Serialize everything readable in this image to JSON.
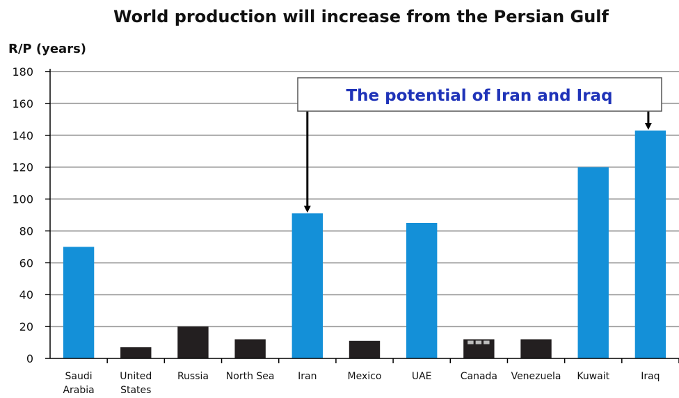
{
  "chart_data": {
    "type": "bar",
    "title": "World production will increase from the Persian Gulf",
    "ylabel": "R/P  (years)",
    "xlabel": "",
    "ylim": [
      0,
      180
    ],
    "yticks": [
      0,
      20,
      40,
      60,
      80,
      100,
      120,
      140,
      160,
      180
    ],
    "grid": true,
    "categories": [
      [
        "Saudi",
        "Arabia"
      ],
      [
        "United",
        "States"
      ],
      [
        "Russia"
      ],
      [
        "North Sea"
      ],
      [
        "Iran"
      ],
      [
        "Mexico"
      ],
      [
        "UAE"
      ],
      [
        "Canada"
      ],
      [
        "Venezuela"
      ],
      [
        "Kuwait"
      ],
      [
        "Iraq"
      ]
    ],
    "values": [
      70,
      7,
      20,
      12,
      91,
      11,
      85,
      12,
      12,
      120,
      143
    ],
    "bar_colors": [
      "#1490d8",
      "#231f20",
      "#231f20",
      "#231f20",
      "#1490d8",
      "#231f20",
      "#1490d8",
      "#231f20",
      "#231f20",
      "#1490d8",
      "#1490d8"
    ],
    "colors": {
      "blue": "#1490d8",
      "dark": "#231f20",
      "annotation_text": "#1f33b8",
      "grid": "#a6a6a6"
    },
    "annotation": {
      "text": "The potential of Iran and Iraq",
      "targets": [
        "Iran",
        "Iraq"
      ]
    }
  }
}
